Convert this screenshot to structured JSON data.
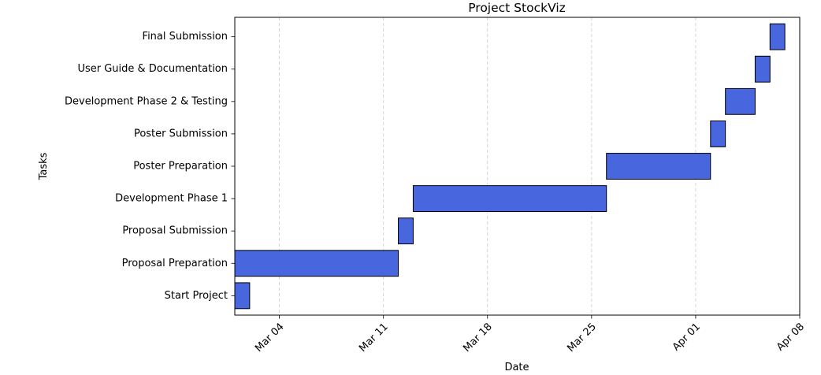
{
  "chart_data": {
    "type": "bar",
    "orientation": "horizontal",
    "title": "Project StockViz",
    "xlabel": "Date",
    "ylabel": "Tasks",
    "grid": "x-dashed",
    "colors": {
      "bar_fill": "#4866de",
      "bar_edge": "#000000",
      "grid": "#cccccc"
    },
    "xlim": [
      "2024-03-01",
      "2024-04-08"
    ],
    "x_ticks": [
      {
        "date": "2024-03-04",
        "label": "Mar 04"
      },
      {
        "date": "2024-03-11",
        "label": "Mar 11"
      },
      {
        "date": "2024-03-18",
        "label": "Mar 18"
      },
      {
        "date": "2024-03-25",
        "label": "Mar 25"
      },
      {
        "date": "2024-04-01",
        "label": "Apr 01"
      },
      {
        "date": "2024-04-08",
        "label": "Apr 08"
      }
    ],
    "tasks": [
      {
        "name": "Start Project",
        "start": "2024-03-01",
        "end": "2024-03-02"
      },
      {
        "name": "Proposal Preparation",
        "start": "2024-03-01",
        "end": "2024-03-12"
      },
      {
        "name": "Proposal Submission",
        "start": "2024-03-12",
        "end": "2024-03-13"
      },
      {
        "name": "Development Phase 1",
        "start": "2024-03-13",
        "end": "2024-03-26"
      },
      {
        "name": "Poster Preparation",
        "start": "2024-03-26",
        "end": "2024-04-02"
      },
      {
        "name": "Poster Submission",
        "start": "2024-04-02",
        "end": "2024-04-03"
      },
      {
        "name": "Development Phase 2 & Testing",
        "start": "2024-04-03",
        "end": "2024-04-05"
      },
      {
        "name": "User Guide & Documentation",
        "start": "2024-04-05",
        "end": "2024-04-06"
      },
      {
        "name": "Final Submission",
        "start": "2024-04-06",
        "end": "2024-04-07"
      }
    ]
  }
}
